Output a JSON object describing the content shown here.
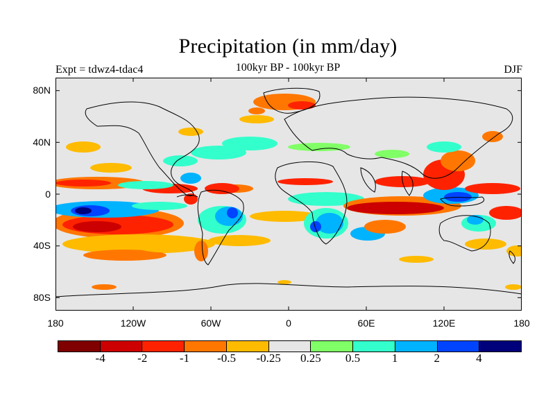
{
  "title": "Precipitation (in mm/day)",
  "subtitle": "100kyr BP - 100kyr BP",
  "left_label": "Expt = tdwz4-tdac4",
  "right_label": "DJF",
  "lat_labels": [
    "80N",
    "40N",
    "0",
    "40S",
    "80S"
  ],
  "lon_labels": [
    "180",
    "120W",
    "60W",
    "0",
    "60E",
    "120E",
    "180"
  ],
  "colorbar": {
    "colors": [
      "#800000",
      "#cc0000",
      "#ff2200",
      "#ff7700",
      "#ffbb00",
      "#e6e6e6",
      "#80ff66",
      "#33ffcc",
      "#00b3ff",
      "#0044ff",
      "#00007a"
    ],
    "labels": [
      "-4",
      "-2",
      "-1",
      "-0.5",
      "-0.25",
      "0.25",
      "0.5",
      "1",
      "2",
      "4"
    ]
  },
  "map": {
    "background_color": "#e6e6e6",
    "legend_sense": "negative = drier (red), positive = wetter (blue)"
  }
}
